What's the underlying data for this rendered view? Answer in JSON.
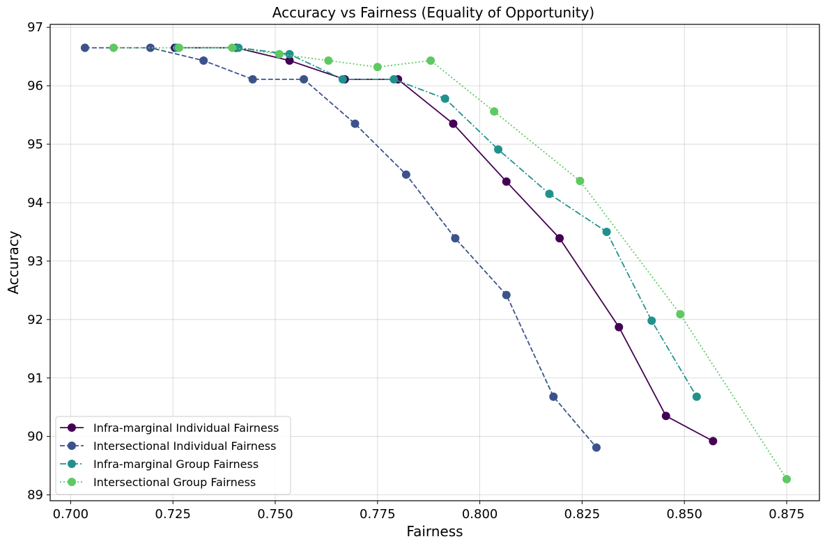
{
  "chart_data": {
    "type": "line",
    "title": "Accuracy vs Fairness (Equality of Opportunity)",
    "xlabel": "Fairness",
    "ylabel": "Accuracy",
    "xlim": [
      0.695,
      0.883
    ],
    "ylim": [
      88.9,
      97.05
    ],
    "xticks": [
      0.7,
      0.725,
      0.75,
      0.775,
      0.8,
      0.825,
      0.85,
      0.875
    ],
    "xtick_labels": [
      "0.700",
      "0.725",
      "0.750",
      "0.775",
      "0.800",
      "0.825",
      "0.850",
      "0.875"
    ],
    "yticks": [
      89,
      90,
      91,
      92,
      93,
      94,
      95,
      96,
      97
    ],
    "ytick_labels": [
      "89",
      "90",
      "91",
      "92",
      "93",
      "94",
      "95",
      "96",
      "97"
    ],
    "grid": true,
    "legend_position": "lower-left",
    "series": [
      {
        "name": "Infra-marginal Individual Fairness",
        "color": "#440154",
        "dash": "solid",
        "x": [
          0.7255,
          0.7405,
          0.7535,
          0.767,
          0.78,
          0.7935,
          0.8065,
          0.8195,
          0.834,
          0.8455,
          0.857
        ],
        "y": [
          96.65,
          96.65,
          96.43,
          96.11,
          96.11,
          95.35,
          94.36,
          93.39,
          91.87,
          90.35,
          89.92
        ]
      },
      {
        "name": "Intersectional Individual Fairness",
        "color": "#3b528b",
        "dash": "dashed",
        "x": [
          0.7035,
          0.7195,
          0.7325,
          0.7445,
          0.757,
          0.7695,
          0.782,
          0.794,
          0.8065,
          0.818,
          0.8285
        ],
        "y": [
          96.65,
          96.65,
          96.43,
          96.11,
          96.11,
          95.35,
          94.48,
          93.39,
          92.42,
          90.68,
          89.81
        ]
      },
      {
        "name": "Infra-marginal Group Fairness",
        "color": "#21918c",
        "dash": "dashdot",
        "x": [
          0.726,
          0.741,
          0.7535,
          0.7665,
          0.779,
          0.7915,
          0.8045,
          0.817,
          0.831,
          0.842,
          0.853
        ],
        "y": [
          96.65,
          96.65,
          96.54,
          96.11,
          96.11,
          95.78,
          94.91,
          94.15,
          93.5,
          91.98,
          90.68
        ]
      },
      {
        "name": "Intersectional Group Fairness",
        "color": "#5ec962",
        "dash": "dotted",
        "x": [
          0.7105,
          0.7265,
          0.7395,
          0.751,
          0.763,
          0.775,
          0.788,
          0.8035,
          0.8245,
          0.849,
          0.875
        ],
        "y": [
          96.65,
          96.65,
          96.65,
          96.54,
          96.43,
          96.32,
          96.43,
          95.56,
          94.37,
          92.09,
          89.27
        ]
      }
    ]
  }
}
